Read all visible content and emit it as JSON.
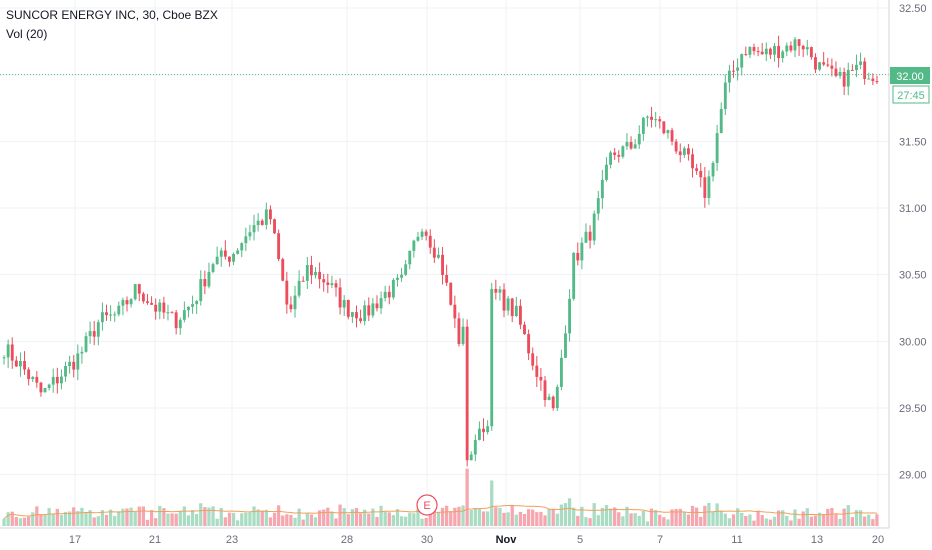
{
  "header": {
    "title": "SUNCOR ENERGY INC, 30, Cboe BZX",
    "indicator": "Vol (20)"
  },
  "price_badge": {
    "value": "32.00",
    "countdown": "27:45"
  },
  "earnings_marker": "E",
  "colors": {
    "up": "#53b987",
    "down": "#eb4d5c",
    "vol_up": "#a9dcc3",
    "vol_down": "#f5a6ae",
    "vol_ma": "#f0a05c",
    "grid": "#eef1f5",
    "badge": "#53b987",
    "axis_text": "#6a6d78"
  },
  "chart_data": {
    "type": "candlestick",
    "title": "SUNCOR ENERGY INC, 30, Cboe BZX",
    "ylim": [
      28.75,
      32.55
    ],
    "y_ticks": [
      "32.50",
      "32.00",
      "31.50",
      "31.00",
      "30.50",
      "30.00",
      "29.50",
      "29.00"
    ],
    "x_ticks": [
      "17",
      "21",
      "23",
      "28",
      "30",
      "Nov",
      "5",
      "7",
      "11",
      "13",
      "20"
    ],
    "last_price": 32.0,
    "grid": true,
    "session_closes": [
      29.95,
      29.8,
      29.6,
      29.75,
      29.9,
      30.15,
      30.2,
      30.4,
      30.25,
      30.15,
      30.3,
      30.6,
      30.65,
      30.85,
      30.95,
      30.2,
      30.55,
      30.45,
      30.25,
      30.2,
      30.35,
      30.45,
      30.9,
      30.6,
      30.0,
      30.3,
      30.35,
      30.2,
      29.8,
      29.45,
      30.6,
      30.85,
      31.4,
      31.45,
      31.7,
      31.55,
      31.35,
      31.1,
      31.9,
      32.2,
      32.15,
      32.2,
      32.25,
      32.05,
      31.95,
      32.05,
      32.0
    ],
    "volume_ma_label": "Vol (20)"
  }
}
